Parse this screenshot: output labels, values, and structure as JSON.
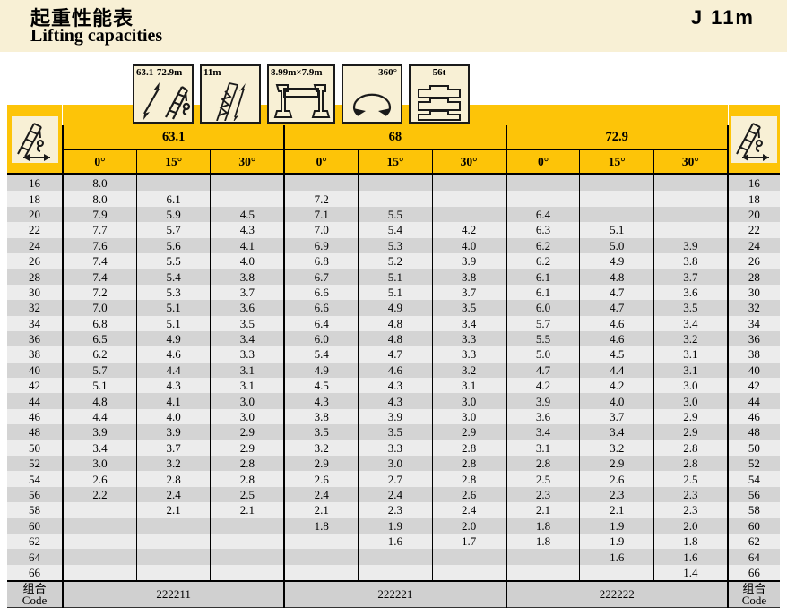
{
  "header": {
    "title_zh": "起重性能表",
    "title_en": "Lifting capacities",
    "page_ref": "J 11m"
  },
  "config_icons": [
    {
      "name": "telescopic-boom-range",
      "label": "63.1-72.9m"
    },
    {
      "name": "jib-length",
      "label": "11m"
    },
    {
      "name": "outrigger-span",
      "label": "8.99m×7.9m"
    },
    {
      "name": "slewing-range",
      "label": "360°"
    },
    {
      "name": "counterweight",
      "label": "56t"
    }
  ],
  "table": {
    "boom_lengths": [
      "63.1",
      "68",
      "72.9"
    ],
    "angles": [
      "0°",
      "15°",
      "30°"
    ],
    "rows": [
      {
        "radius": "16",
        "values": [
          "8.0",
          "",
          "",
          "",
          "",
          "",
          "",
          "",
          ""
        ]
      },
      {
        "radius": "18",
        "values": [
          "8.0",
          "6.1",
          "",
          "7.2",
          "",
          "",
          "",
          "",
          ""
        ]
      },
      {
        "radius": "20",
        "values": [
          "7.9",
          "5.9",
          "4.5",
          "7.1",
          "5.5",
          "",
          "6.4",
          "",
          ""
        ]
      },
      {
        "radius": "22",
        "values": [
          "7.7",
          "5.7",
          "4.3",
          "7.0",
          "5.4",
          "4.2",
          "6.3",
          "5.1",
          ""
        ]
      },
      {
        "radius": "24",
        "values": [
          "7.6",
          "5.6",
          "4.1",
          "6.9",
          "5.3",
          "4.0",
          "6.2",
          "5.0",
          "3.9"
        ]
      },
      {
        "radius": "26",
        "values": [
          "7.4",
          "5.5",
          "4.0",
          "6.8",
          "5.2",
          "3.9",
          "6.2",
          "4.9",
          "3.8"
        ]
      },
      {
        "radius": "28",
        "values": [
          "7.4",
          "5.4",
          "3.8",
          "6.7",
          "5.1",
          "3.8",
          "6.1",
          "4.8",
          "3.7"
        ]
      },
      {
        "radius": "30",
        "values": [
          "7.2",
          "5.3",
          "3.7",
          "6.6",
          "5.1",
          "3.7",
          "6.1",
          "4.7",
          "3.6"
        ]
      },
      {
        "radius": "32",
        "values": [
          "7.0",
          "5.1",
          "3.6",
          "6.6",
          "4.9",
          "3.5",
          "6.0",
          "4.7",
          "3.5"
        ]
      },
      {
        "radius": "34",
        "values": [
          "6.8",
          "5.1",
          "3.5",
          "6.4",
          "4.8",
          "3.4",
          "5.7",
          "4.6",
          "3.4"
        ]
      },
      {
        "radius": "36",
        "values": [
          "6.5",
          "4.9",
          "3.4",
          "6.0",
          "4.8",
          "3.3",
          "5.5",
          "4.6",
          "3.2"
        ]
      },
      {
        "radius": "38",
        "values": [
          "6.2",
          "4.6",
          "3.3",
          "5.4",
          "4.7",
          "3.3",
          "5.0",
          "4.5",
          "3.1"
        ]
      },
      {
        "radius": "40",
        "values": [
          "5.7",
          "4.4",
          "3.1",
          "4.9",
          "4.6",
          "3.2",
          "4.7",
          "4.4",
          "3.1"
        ]
      },
      {
        "radius": "42",
        "values": [
          "5.1",
          "4.3",
          "3.1",
          "4.5",
          "4.3",
          "3.1",
          "4.2",
          "4.2",
          "3.0"
        ]
      },
      {
        "radius": "44",
        "values": [
          "4.8",
          "4.1",
          "3.0",
          "4.3",
          "4.3",
          "3.0",
          "3.9",
          "4.0",
          "3.0"
        ]
      },
      {
        "radius": "46",
        "values": [
          "4.4",
          "4.0",
          "3.0",
          "3.8",
          "3.9",
          "3.0",
          "3.6",
          "3.7",
          "2.9"
        ]
      },
      {
        "radius": "48",
        "values": [
          "3.9",
          "3.9",
          "2.9",
          "3.5",
          "3.5",
          "2.9",
          "3.4",
          "3.4",
          "2.9"
        ]
      },
      {
        "radius": "50",
        "values": [
          "3.4",
          "3.7",
          "2.9",
          "3.2",
          "3.3",
          "2.8",
          "3.1",
          "3.2",
          "2.8"
        ]
      },
      {
        "radius": "52",
        "values": [
          "3.0",
          "3.2",
          "2.8",
          "2.9",
          "3.0",
          "2.8",
          "2.8",
          "2.9",
          "2.8"
        ]
      },
      {
        "radius": "54",
        "values": [
          "2.6",
          "2.8",
          "2.8",
          "2.6",
          "2.7",
          "2.8",
          "2.5",
          "2.6",
          "2.5"
        ]
      },
      {
        "radius": "56",
        "values": [
          "2.2",
          "2.4",
          "2.5",
          "2.4",
          "2.4",
          "2.6",
          "2.3",
          "2.3",
          "2.3"
        ]
      },
      {
        "radius": "58",
        "values": [
          "",
          "2.1",
          "2.1",
          "2.1",
          "2.3",
          "2.4",
          "2.1",
          "2.1",
          "2.3"
        ]
      },
      {
        "radius": "60",
        "values": [
          "",
          "",
          "",
          "1.8",
          "1.9",
          "2.0",
          "1.8",
          "1.9",
          "2.0"
        ]
      },
      {
        "radius": "62",
        "values": [
          "",
          "",
          "",
          "",
          "1.6",
          "1.7",
          "1.8",
          "1.9",
          "1.8"
        ]
      },
      {
        "radius": "64",
        "values": [
          "",
          "",
          "",
          "",
          "",
          "",
          "",
          "1.6",
          "1.6"
        ]
      },
      {
        "radius": "66",
        "values": [
          "",
          "",
          "",
          "",
          "",
          "",
          "",
          "",
          "1.4"
        ]
      }
    ],
    "code_label_zh": "组合",
    "code_label_en": "Code",
    "codes": [
      "222211",
      "222221",
      "222222"
    ]
  },
  "colors": {
    "accent_yellow": "#FDC408",
    "cream": "#F8F0D5",
    "row_dark": "#D4D4D4",
    "row_light": "#ECECEC",
    "code_row_grey": "#D0D0D0"
  }
}
